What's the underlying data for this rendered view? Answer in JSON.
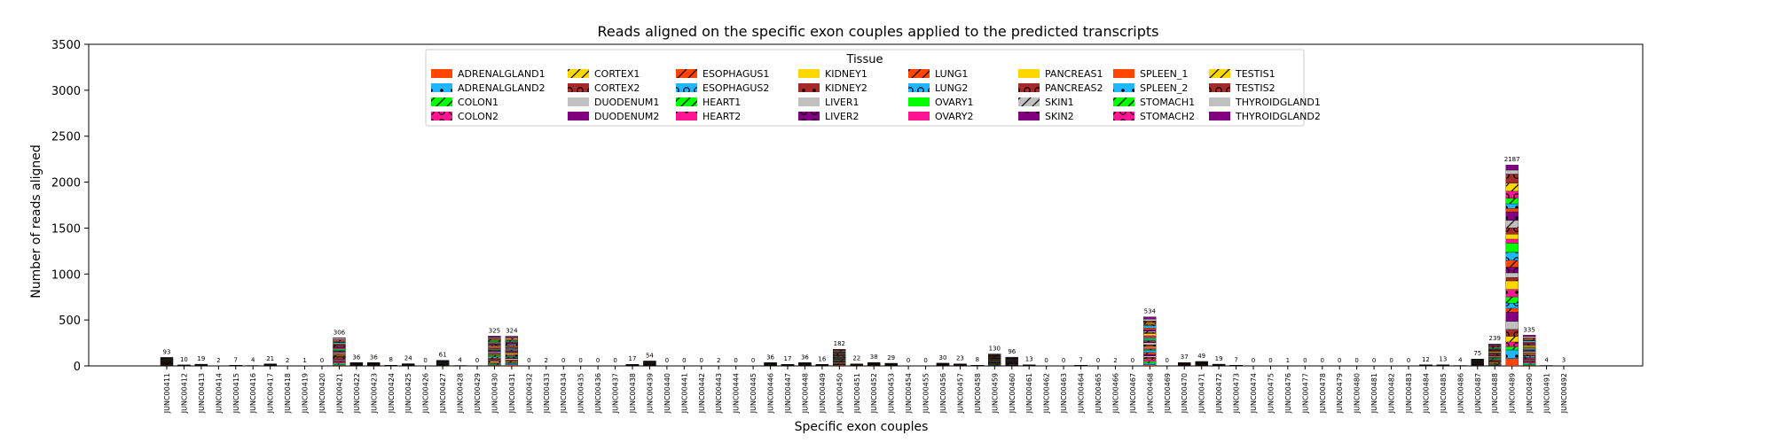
{
  "chart_data": {
    "type": "bar",
    "stacked": true,
    "title": "Reads aligned on the specific exon couples applied to the predicted transcripts",
    "xlabel": "Specific exon couples",
    "ylabel": "Number of reads aligned",
    "ylim": [
      0,
      3500
    ],
    "yticks": [
      0,
      500,
      1000,
      1500,
      2000,
      2500,
      3000,
      3500
    ],
    "legend_title": "Tissue",
    "legend_placement": "top-center",
    "grid": false,
    "legend": [
      {
        "name": "ADRENALGLAND1",
        "color": "#ff4500",
        "hatch": "none"
      },
      {
        "name": "ADRENALGLAND2",
        "color": "#1fb5ff",
        "hatch": "dot"
      },
      {
        "name": "COLON1",
        "color": "#00ff00",
        "hatch": "slash"
      },
      {
        "name": "COLON2",
        "color": "#ff1493",
        "hatch": "circle"
      },
      {
        "name": "CORTEX1",
        "color": "#ffd700",
        "hatch": "slash"
      },
      {
        "name": "CORTEX2",
        "color": "#a52a2a",
        "hatch": "circle"
      },
      {
        "name": "DUODENUM1",
        "color": "#c0c0c0",
        "hatch": "none"
      },
      {
        "name": "DUODENUM2",
        "color": "#800080",
        "hatch": "none"
      },
      {
        "name": "ESOPHAGUS1",
        "color": "#ff4500",
        "hatch": "slash"
      },
      {
        "name": "ESOPHAGUS2",
        "color": "#1fb5ff",
        "hatch": "circle"
      },
      {
        "name": "HEART1",
        "color": "#00ff00",
        "hatch": "slash"
      },
      {
        "name": "HEART2",
        "color": "#ff1493",
        "hatch": "dot"
      },
      {
        "name": "KIDNEY1",
        "color": "#ffd700",
        "hatch": "none"
      },
      {
        "name": "KIDNEY2",
        "color": "#a52a2a",
        "hatch": "dot"
      },
      {
        "name": "LIVER1",
        "color": "#c0c0c0",
        "hatch": "none"
      },
      {
        "name": "LIVER2",
        "color": "#800080",
        "hatch": "circle"
      },
      {
        "name": "LUNG1",
        "color": "#ff4500",
        "hatch": "slash"
      },
      {
        "name": "LUNG2",
        "color": "#1fb5ff",
        "hatch": "circle"
      },
      {
        "name": "OVARY1",
        "color": "#00ff00",
        "hatch": "none"
      },
      {
        "name": "OVARY2",
        "color": "#ff1493",
        "hatch": "none"
      },
      {
        "name": "PANCREAS1",
        "color": "#ffd700",
        "hatch": "none"
      },
      {
        "name": "PANCREAS2",
        "color": "#a52a2a",
        "hatch": "circle"
      },
      {
        "name": "SKIN1",
        "color": "#c0c0c0",
        "hatch": "slash"
      },
      {
        "name": "SKIN2",
        "color": "#800080",
        "hatch": "dot"
      },
      {
        "name": "SPLEEN_1",
        "color": "#ff4500",
        "hatch": "none"
      },
      {
        "name": "SPLEEN_2",
        "color": "#1fb5ff",
        "hatch": "dot"
      },
      {
        "name": "STOMACH1",
        "color": "#00ff00",
        "hatch": "slash"
      },
      {
        "name": "STOMACH2",
        "color": "#ff1493",
        "hatch": "circle"
      },
      {
        "name": "TESTIS1",
        "color": "#ffd700",
        "hatch": "slash"
      },
      {
        "name": "TESTIS2",
        "color": "#a52a2a",
        "hatch": "circle"
      },
      {
        "name": "THYROIDGLAND1",
        "color": "#c0c0c0",
        "hatch": "none"
      },
      {
        "name": "THYROIDGLAND2",
        "color": "#800080",
        "hatch": "none"
      }
    ],
    "categories": [
      "JUNC00411",
      "JUNC00412",
      "JUNC00413",
      "JUNC00414",
      "JUNC00415",
      "JUNC00416",
      "JUNC00417",
      "JUNC00418",
      "JUNC00419",
      "JUNC00420",
      "JUNC00421",
      "JUNC00422",
      "JUNC00423",
      "JUNC00424",
      "JUNC00425",
      "JUNC00426",
      "JUNC00427",
      "JUNC00428",
      "JUNC00429",
      "JUNC00430",
      "JUNC00431",
      "JUNC00432",
      "JUNC00433",
      "JUNC00434",
      "JUNC00435",
      "JUNC00436",
      "JUNC00437",
      "JUNC00438",
      "JUNC00439",
      "JUNC00440",
      "JUNC00441",
      "JUNC00442",
      "JUNC00443",
      "JUNC00444",
      "JUNC00445",
      "JUNC00446",
      "JUNC00447",
      "JUNC00448",
      "JUNC00449",
      "JUNC00450",
      "JUNC00451",
      "JUNC00452",
      "JUNC00453",
      "JUNC00454",
      "JUNC00455",
      "JUNC00456",
      "JUNC00457",
      "JUNC00458",
      "JUNC00459",
      "JUNC00460",
      "JUNC00461",
      "JUNC00462",
      "JUNC00463",
      "JUNC00464",
      "JUNC00465",
      "JUNC00466",
      "JUNC00467",
      "JUNC00468",
      "JUNC00469",
      "JUNC00470",
      "JUNC00471",
      "JUNC00472",
      "JUNC00473",
      "JUNC00474",
      "JUNC00475",
      "JUNC00476",
      "JUNC00477",
      "JUNC00478",
      "JUNC00479",
      "JUNC00480",
      "JUNC00481",
      "JUNC00482",
      "JUNC00483",
      "JUNC00484",
      "JUNC00485",
      "JUNC00486",
      "JUNC00487",
      "JUNC00488",
      "JUNC00489",
      "JUNC00490",
      "JUNC00491",
      "JUNC00492"
    ],
    "totals": [
      93,
      10,
      19,
      2,
      7,
      4,
      21,
      2,
      1,
      0,
      306,
      36,
      36,
      8,
      24,
      0,
      61,
      4,
      0,
      325,
      324,
      0,
      2,
      0,
      0,
      0,
      0,
      17,
      54,
      0,
      0,
      0,
      2,
      0,
      0,
      36,
      17,
      36,
      16,
      182,
      22,
      38,
      29,
      0,
      0,
      30,
      23,
      8,
      130,
      96,
      13,
      0,
      0,
      7,
      0,
      2,
      0,
      534,
      0,
      37,
      49,
      19,
      7,
      0,
      0,
      1,
      0,
      0,
      0,
      0,
      0,
      0,
      0,
      12,
      13,
      4,
      75,
      239,
      2187,
      335,
      4,
      3
    ]
  }
}
